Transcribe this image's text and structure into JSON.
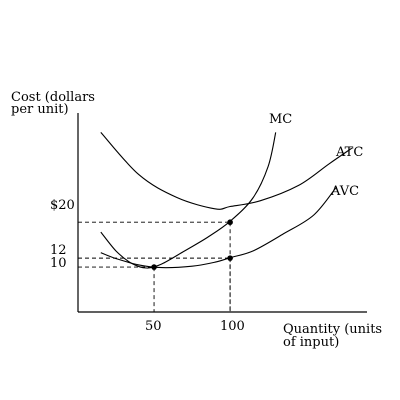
{
  "chart_data": {
    "type": "line",
    "ylabel_lines": [
      "Cost (dollars",
      "per unit)"
    ],
    "xlabel_lines": [
      "Quantity (units",
      "of input)"
    ],
    "x_ticks": [
      {
        "value": 50,
        "label": "50"
      },
      {
        "value": 100,
        "label": "100"
      }
    ],
    "y_ticks": [
      {
        "value": 20,
        "label": "$20"
      },
      {
        "value": 12,
        "label": "12"
      },
      {
        "value": 10,
        "label": "10"
      }
    ],
    "xlim": [
      0,
      190
    ],
    "ylim": [
      0,
      45
    ],
    "series": [
      {
        "name": "MC",
        "points": [
          [
            15,
            17.8
          ],
          [
            25,
            13.6
          ],
          [
            35,
            10.9
          ],
          [
            45,
            9.8
          ],
          [
            55,
            10.7
          ],
          [
            70,
            13.6
          ],
          [
            85,
            16.6
          ],
          [
            100,
            20.2
          ],
          [
            115,
            25.4
          ],
          [
            125,
            32.4
          ],
          [
            130,
            40.0
          ]
        ]
      },
      {
        "name": "ATC",
        "points": [
          [
            15,
            40.0
          ],
          [
            40,
            30.6
          ],
          [
            65,
            25.5
          ],
          [
            90,
            23.0
          ],
          [
            100,
            23.5
          ],
          [
            120,
            24.8
          ],
          [
            145,
            28.2
          ],
          [
            165,
            33.0
          ],
          [
            180,
            36.5
          ]
        ]
      },
      {
        "name": "AVC",
        "points": [
          [
            15,
            13.2
          ],
          [
            25,
            11.9
          ],
          [
            40,
            10.5
          ],
          [
            55,
            9.9
          ],
          [
            75,
            10.2
          ],
          [
            90,
            11.1
          ],
          [
            100,
            12.1
          ],
          [
            115,
            13.6
          ],
          [
            135,
            17.4
          ],
          [
            155,
            21.6
          ],
          [
            170,
            27.9
          ]
        ]
      }
    ],
    "marked_points": [
      {
        "series": "MC",
        "x": 50,
        "y": 10
      },
      {
        "series": "MC",
        "x": 100,
        "y": 20
      },
      {
        "series": "AVC",
        "x": 100,
        "y": 12
      }
    ],
    "guide_lines": [
      {
        "x": 50,
        "y": 10
      },
      {
        "x": 100,
        "y": 20
      },
      {
        "x": 100,
        "y": 12
      }
    ]
  }
}
